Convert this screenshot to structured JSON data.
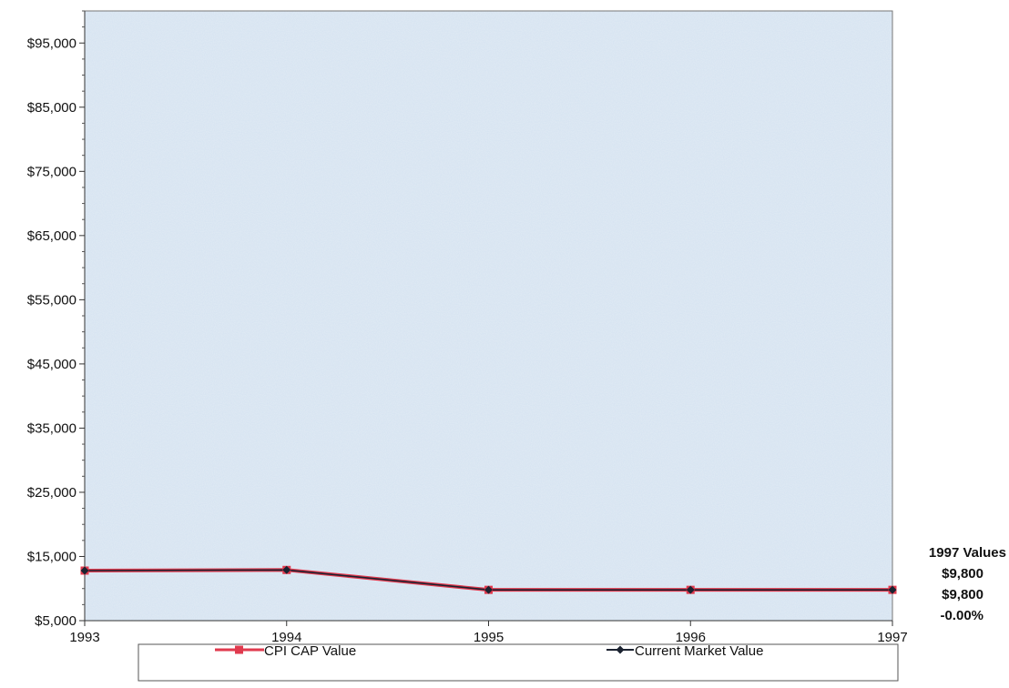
{
  "chart_data": {
    "type": "line",
    "title": "",
    "xlabel": "",
    "ylabel": "",
    "x": [
      "1993",
      "1994",
      "1995",
      "1996",
      "1997"
    ],
    "ylim": [
      5000,
      100000
    ],
    "y_ticks": [
      5000,
      15000,
      25000,
      35000,
      45000,
      55000,
      65000,
      75000,
      85000,
      95000
    ],
    "y_tick_labels": [
      "$5,000",
      "$15,000",
      "$25,000",
      "$35,000",
      "$45,000",
      "$55,000",
      "$65,000",
      "$75,000",
      "$85,000",
      "$95,000"
    ],
    "grid": false,
    "legend_position": "bottom",
    "series": [
      {
        "name": "CPI CAP Value",
        "values": [
          12800,
          12900,
          9800,
          9800,
          9800
        ],
        "color": "#e03a4e",
        "marker": "square"
      },
      {
        "name": "Current Market Value",
        "values": [
          12800,
          12900,
          9800,
          9800,
          9800
        ],
        "color": "#1b2230",
        "marker": "diamond"
      }
    ],
    "annotation": {
      "title": "1997 Values",
      "lines": [
        "$9,800",
        "$9,800",
        "-0.00%"
      ]
    },
    "colors": {
      "plot_background": "#dde8f3",
      "axis": "#333333"
    }
  }
}
